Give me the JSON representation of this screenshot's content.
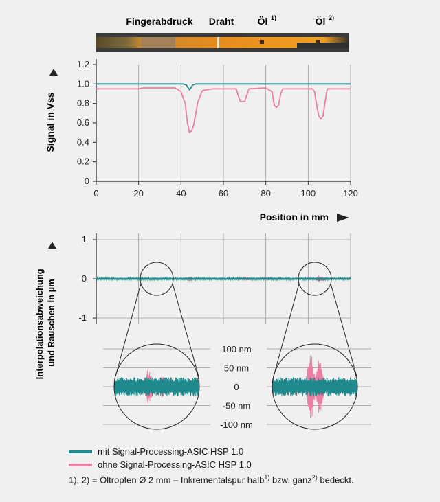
{
  "colors": {
    "with_asic": "#1f8a8e",
    "without_asic": "#ee7fa4",
    "strip": "#e98b1c",
    "axis": "#222222",
    "grid": "#9a9a9a"
  },
  "top_labels": [
    {
      "text": "Fingerabdruck",
      "sup": ""
    },
    {
      "text": "Draht",
      "sup": ""
    },
    {
      "text": "Öl",
      "sup": "1)"
    },
    {
      "text": "Öl",
      "sup": "2)"
    }
  ],
  "chart_data": [
    {
      "type": "line",
      "ylabel": "Signal in Vss",
      "xlabel": "Position in mm",
      "xlim": [
        0,
        120
      ],
      "ylim": [
        0,
        1.2
      ],
      "x_ticks": [
        "0",
        "20",
        "40",
        "60",
        "80",
        "100",
        "120"
      ],
      "y_ticks": [
        "0",
        "0.2",
        "0.4",
        "0.6",
        "0.8",
        "1.0",
        "1.2"
      ],
      "grid": true,
      "series": [
        {
          "name": "mit Signal-Processing-ASIC HSP 1.0",
          "x": [
            0,
            41,
            42.5,
            44,
            45.5,
            47,
            120
          ],
          "y": [
            1.0,
            1.0,
            0.99,
            0.94,
            0.99,
            1.0,
            1.0
          ]
        },
        {
          "name": "ohne Signal-Processing-ASIC HSP 1.0",
          "x": [
            0,
            20,
            22,
            24,
            25,
            28,
            32,
            35,
            37,
            38,
            40,
            42,
            43,
            44,
            45,
            46,
            47,
            48,
            50,
            52,
            55,
            60,
            66,
            67,
            68,
            70,
            71,
            72,
            80,
            83,
            84,
            85,
            86,
            87,
            88,
            102,
            103,
            104,
            105,
            106,
            107,
            108,
            109,
            120
          ],
          "y": [
            0.95,
            0.95,
            0.96,
            0.96,
            0.96,
            0.96,
            0.96,
            0.96,
            0.96,
            0.95,
            0.92,
            0.8,
            0.6,
            0.5,
            0.52,
            0.58,
            0.7,
            0.82,
            0.93,
            0.94,
            0.95,
            0.95,
            0.95,
            0.88,
            0.82,
            0.82,
            0.88,
            0.95,
            0.96,
            0.92,
            0.78,
            0.76,
            0.78,
            0.9,
            0.95,
            0.95,
            0.92,
            0.78,
            0.67,
            0.64,
            0.67,
            0.82,
            0.95,
            0.95
          ]
        }
      ]
    },
    {
      "type": "line",
      "ylabel": "Interpolationsabweichung und Rauschen in µm",
      "xlim": [
        0,
        120
      ],
      "ylim": [
        -1,
        1
      ],
      "y_ticks": [
        "1",
        "0",
        "-1"
      ],
      "grid": true,
      "series": [
        {
          "name": "mit Signal-Processing-ASIC HSP 1.0",
          "noise_amplitude_um": 0.03
        },
        {
          "name": "ohne Signal-Processing-ASIC HSP 1.0",
          "bursts": [
            {
              "x": 44,
              "amplitude_um": 0.07
            },
            {
              "x": 68,
              "amplitude_um": 0.04
            },
            {
              "x": 71,
              "amplitude_um": 0.05
            },
            {
              "x": 80,
              "amplitude_um": 0.03
            },
            {
              "x": 82,
              "amplitude_um": 0.03
            },
            {
              "x": 105,
              "amplitude_um": 0.08
            },
            {
              "x": 107,
              "amplitude_um": 0.06
            }
          ]
        }
      ]
    },
    {
      "type": "line",
      "inset": true,
      "y_ticks": [
        "100 nm",
        "50 nm",
        "0",
        "-50 nm",
        "-100 nm"
      ],
      "ylim": [
        -100,
        100
      ],
      "series": [
        {
          "name": "mit Signal-Processing-ASIC HSP 1.0",
          "noise_amplitude_nm": 25
        },
        {
          "name": "ohne Signal-Processing-ASIC HSP 1.0",
          "zoom_left_bursts": [
            {
              "amplitude_nm": 45
            },
            {
              "amplitude_nm": 30
            }
          ],
          "zoom_right_bursts": [
            {
              "amplitude_nm": 90
            },
            {
              "amplitude_nm": 75
            }
          ]
        }
      ]
    }
  ],
  "legend": [
    {
      "label": "mit Signal-Processing-ASIC HSP 1.0",
      "color": "#1f8a8e"
    },
    {
      "label": "ohne Signal-Processing-ASIC HSP 1.0",
      "color": "#ee7fa4"
    }
  ],
  "footnote": {
    "prefix": "1), 2) = Öltropfen Ø 2 mm – Inkrementalspur halb",
    "sup1": "1)",
    "middle": " bzw. ganz",
    "sup2": "2)",
    "suffix": " bedeckt."
  }
}
